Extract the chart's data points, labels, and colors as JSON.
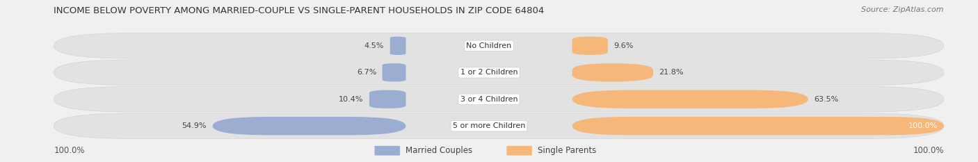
{
  "title": "INCOME BELOW POVERTY AMONG MARRIED-COUPLE VS SINGLE-PARENT HOUSEHOLDS IN ZIP CODE 64804",
  "source": "Source: ZipAtlas.com",
  "categories": [
    "No Children",
    "1 or 2 Children",
    "3 or 4 Children",
    "5 or more Children"
  ],
  "married_values": [
    4.5,
    6.7,
    10.4,
    54.9
  ],
  "single_values": [
    9.6,
    21.8,
    63.5,
    100.0
  ],
  "married_color": "#9BADD0",
  "single_color": "#F5B87A",
  "bg_color": "#F0F0F0",
  "row_bg_color": "#E2E2E2",
  "title_fontsize": 9.5,
  "source_fontsize": 8,
  "value_fontsize": 8,
  "cat_fontsize": 8,
  "legend_fontsize": 8.5,
  "axis_label_left": "100.0%",
  "axis_label_right": "100.0%",
  "max_value": 100.0
}
